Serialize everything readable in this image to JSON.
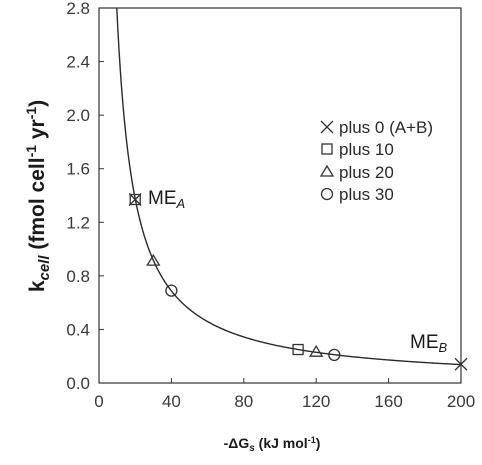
{
  "chart_data": {
    "type": "scatter",
    "xlabel": {
      "prefix": "-ΔG",
      "sub": "s",
      "suffix": " (kJ mol",
      "sup": "-1",
      "end": ")"
    },
    "ylabel": {
      "prefix": "k",
      "sub": "cell",
      "mid1": " (fmol cell",
      "sup1": "-1",
      "mid2": " yr",
      "sup2": "-1",
      "end": ")"
    },
    "xlim": [
      0,
      200
    ],
    "ylim": [
      0,
      2.8
    ],
    "xticks": [
      0,
      40,
      80,
      120,
      160,
      200
    ],
    "yticks": [
      0.0,
      0.4,
      0.8,
      1.2,
      1.6,
      2.0,
      2.4,
      2.8
    ],
    "ytick_labels": [
      "0.0",
      "0.4",
      "0.8",
      "1.2",
      "1.6",
      "2.0",
      "2.4",
      "2.8"
    ],
    "grid": false,
    "legend_position": "right-middle",
    "series": [
      {
        "name": "plus 0 (A+B)",
        "marker": "x",
        "points": [
          [
            20,
            1.37
          ],
          [
            200,
            0.14
          ]
        ]
      },
      {
        "name": "plus 10",
        "marker": "square",
        "points": [
          [
            20,
            1.37
          ],
          [
            110,
            0.25
          ]
        ]
      },
      {
        "name": "plus 20",
        "marker": "triangle",
        "points": [
          [
            30,
            0.91
          ],
          [
            120,
            0.23
          ]
        ]
      },
      {
        "name": "plus 30",
        "marker": "circle",
        "points": [
          [
            40,
            0.69
          ],
          [
            130,
            0.21
          ]
        ]
      }
    ],
    "fit_curve": {
      "form": "k = c / x",
      "c": 27.5
    },
    "annotations": [
      {
        "base": "ME",
        "sub": "A",
        "x": 20,
        "y": 1.37
      },
      {
        "base": "ME",
        "sub": "B",
        "x": 200,
        "y": 0.14
      }
    ]
  }
}
